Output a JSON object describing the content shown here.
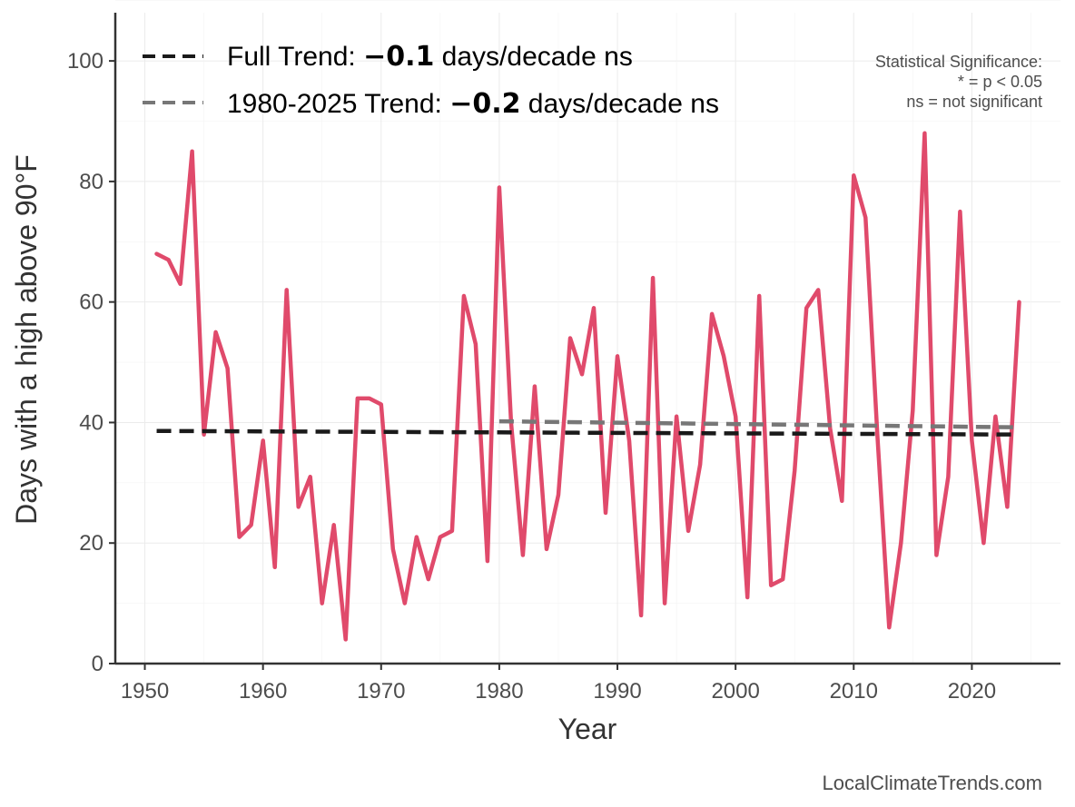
{
  "chart_data": {
    "type": "line",
    "xlabel": "Year",
    "ylabel": "Days with a high above 90°F",
    "xlim": [
      1947.5,
      2027.5
    ],
    "ylim": [
      0,
      108
    ],
    "x_ticks": [
      1950,
      1960,
      1970,
      1980,
      1990,
      2000,
      2010,
      2020
    ],
    "y_ticks": [
      0,
      20,
      40,
      60,
      80,
      100
    ],
    "grid": true,
    "series": [
      {
        "name": "Days with a high above 90°F",
        "color": "#e04a6b",
        "x": [
          1951,
          1952,
          1953,
          1954,
          1955,
          1956,
          1957,
          1958,
          1959,
          1960,
          1961,
          1962,
          1963,
          1964,
          1965,
          1966,
          1967,
          1968,
          1969,
          1970,
          1971,
          1972,
          1973,
          1974,
          1975,
          1976,
          1977,
          1978,
          1979,
          1980,
          1981,
          1982,
          1983,
          1984,
          1985,
          1986,
          1987,
          1988,
          1989,
          1990,
          1991,
          1992,
          1993,
          1994,
          1995,
          1996,
          1997,
          1998,
          1999,
          2000,
          2001,
          2002,
          2003,
          2004,
          2005,
          2006,
          2007,
          2008,
          2009,
          2010,
          2011,
          2012,
          2013,
          2014,
          2015,
          2016,
          2017,
          2018,
          2019,
          2020,
          2021,
          2022,
          2023,
          2024
        ],
        "values": [
          68,
          67,
          63,
          85,
          38,
          55,
          49,
          21,
          23,
          37,
          16,
          62,
          26,
          31,
          10,
          23,
          4,
          44,
          44,
          43,
          19,
          10,
          21,
          14,
          21,
          22,
          61,
          53,
          17,
          79,
          40,
          18,
          46,
          19,
          28,
          54,
          48,
          59,
          25,
          51,
          37,
          8,
          64,
          10,
          41,
          22,
          33,
          58,
          51,
          41,
          11,
          61,
          13,
          14,
          32,
          59,
          62,
          39,
          27,
          81,
          74,
          38,
          6,
          20,
          42,
          88,
          18,
          31,
          75,
          37,
          20,
          41,
          26,
          60
        ]
      }
    ],
    "trends": [
      {
        "name": "Full Trend",
        "label_prefix": "Full Trend: ",
        "value_label": "−0.1",
        "label_suffix": " days/decade ns",
        "color": "#1a1a1a",
        "x": [
          1951,
          2024
        ],
        "y": [
          38.6,
          38.0
        ]
      },
      {
        "name": "1980-2025 Trend",
        "label_prefix": "1980-2025 Trend: ",
        "value_label": "−0.2",
        "label_suffix": " days/decade ns",
        "color": "#777777",
        "x": [
          1980,
          2024
        ],
        "y": [
          40.2,
          39.2
        ]
      }
    ],
    "annotation": {
      "lines": [
        "Statistical Significance:",
        "* = p < 0.05",
        "ns = not significant"
      ],
      "placement": "top-right"
    },
    "legend_placement": "top-left",
    "source": "LocalClimateTrends.com"
  }
}
